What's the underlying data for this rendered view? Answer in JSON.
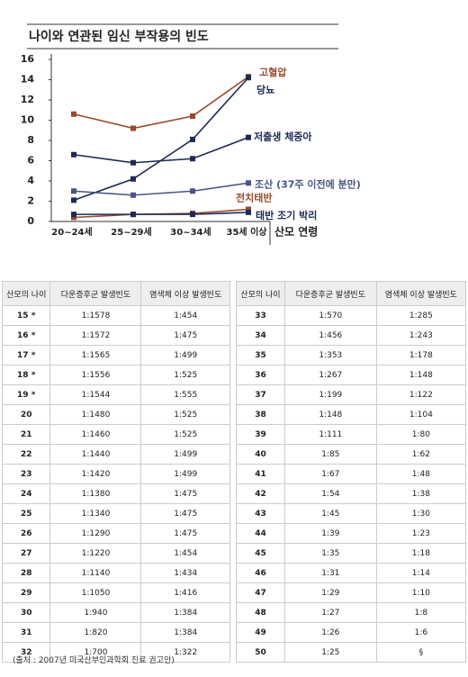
{
  "chart_data": {
    "type": "line",
    "title": "나이와 연관된 임신 부작용의 빈도",
    "categories": [
      "20~24세",
      "25~29세",
      "30~34세",
      "35세 이상"
    ],
    "x_label": "산모 연령",
    "ylim": [
      0,
      16
    ],
    "yticks": [
      0,
      2,
      4,
      6,
      8,
      10,
      12,
      14,
      16
    ],
    "series": [
      {
        "name": "고혈압",
        "color": "#9a4a2a",
        "values": [
          10.6,
          9.2,
          10.4,
          14.3
        ]
      },
      {
        "name": "당뇨",
        "color": "#1c2a55",
        "values": [
          2.1,
          4.2,
          8.1,
          14.2
        ]
      },
      {
        "name": "저출생 체중아",
        "color": "#1c2a55",
        "values": [
          6.6,
          5.8,
          6.2,
          8.3
        ]
      },
      {
        "name": "조산 (37주 이전에 분만)",
        "color": "#4a5585",
        "values": [
          3.0,
          2.6,
          3.0,
          3.8
        ]
      },
      {
        "name": "전치태반",
        "color": "#9a4a2a",
        "values": [
          0.4,
          0.7,
          0.8,
          1.2
        ]
      },
      {
        "name": "태반 조기 박리",
        "color": "#1c2a55",
        "values": [
          0.7,
          0.7,
          0.7,
          0.9
        ]
      }
    ]
  },
  "tables": [
    {
      "header": [
        "산모의 나이",
        "다운증후군 발생빈도",
        "염색체 이상 발생빈도"
      ],
      "rows": [
        [
          "15 *",
          "1:1578",
          "1:454"
        ],
        [
          "16 *",
          "1:1572",
          "1:475"
        ],
        [
          "17 *",
          "1:1565",
          "1:499"
        ],
        [
          "18 *",
          "1:1556",
          "1:525"
        ],
        [
          "19 *",
          "1:1544",
          "1:555"
        ],
        [
          "20",
          "1:1480",
          "1:525"
        ],
        [
          "21",
          "1:1460",
          "1:525"
        ],
        [
          "22",
          "1:1440",
          "1:499"
        ],
        [
          "23",
          "1:1420",
          "1:499"
        ],
        [
          "24",
          "1:1380",
          "1:475"
        ],
        [
          "25",
          "1:1340",
          "1:475"
        ],
        [
          "26",
          "1:1290",
          "1:475"
        ],
        [
          "27",
          "1:1220",
          "1:454"
        ],
        [
          "28",
          "1:1140",
          "1:434"
        ],
        [
          "29",
          "1:1050",
          "1:416"
        ],
        [
          "30",
          "1:940",
          "1:384"
        ],
        [
          "31",
          "1:820",
          "1:384"
        ],
        [
          "32",
          "1:700",
          "1:322"
        ]
      ]
    },
    {
      "header": [
        "산모의 나이",
        "다운증후군 발생빈도",
        "염색체 이상 발생빈도"
      ],
      "rows": [
        [
          "33",
          "1:570",
          "1:285"
        ],
        [
          "34",
          "1:456",
          "1:243"
        ],
        [
          "35",
          "1:353",
          "1:178"
        ],
        [
          "36",
          "1:267",
          "1:148"
        ],
        [
          "37",
          "1:199",
          "1:122"
        ],
        [
          "38",
          "1:148",
          "1:104"
        ],
        [
          "39",
          "1:111",
          "1:80"
        ],
        [
          "40",
          "1:85",
          "1:62"
        ],
        [
          "41",
          "1:67",
          "1:48"
        ],
        [
          "42",
          "1:54",
          "1:38"
        ],
        [
          "43",
          "1:45",
          "1:30"
        ],
        [
          "44",
          "1:39",
          "1:23"
        ],
        [
          "45",
          "1:35",
          "1:18"
        ],
        [
          "46",
          "1:31",
          "1:14"
        ],
        [
          "47",
          "1:29",
          "1:10"
        ],
        [
          "48",
          "1:27",
          "1:8"
        ],
        [
          "49",
          "1:26",
          "1:6"
        ],
        [
          "50",
          "1:25",
          "§"
        ]
      ]
    }
  ],
  "source": "(출처 : 2007년 미국산부인과학회 진료 권고안)"
}
